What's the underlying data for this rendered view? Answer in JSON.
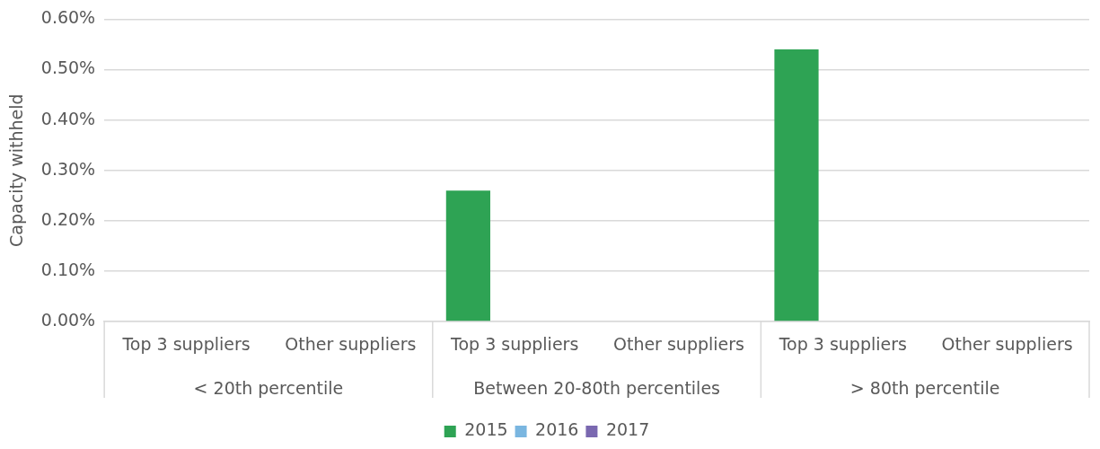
{
  "chart_data": {
    "type": "bar",
    "ylabel": "Capacity withheld",
    "categories": [
      "Top 3 suppliers",
      "Other suppliers",
      "Top 3 suppliers",
      "Other suppliers",
      "Top 3 suppliers",
      "Other suppliers"
    ],
    "annotations": [
      "< 20th percentile",
      "Between 20-80th percentiles",
      "> 80th percentile"
    ],
    "series": [
      {
        "name": "2015",
        "color": "#2ea354",
        "values": [
          0,
          0,
          0.26,
          0,
          0.54,
          0
        ]
      },
      {
        "name": "2016",
        "color": "#7ab6e0",
        "values": [
          0,
          0,
          0,
          0,
          0,
          0
        ]
      },
      {
        "name": "2017",
        "color": "#7a68b0",
        "values": [
          0,
          0,
          0,
          0,
          0,
          0
        ]
      }
    ],
    "ylim": [
      0,
      0.6
    ],
    "yticks": [
      {
        "value": 0,
        "label": "0.00%"
      },
      {
        "value": 0.1,
        "label": "0.10%"
      },
      {
        "value": 0.2,
        "label": "0.20%"
      },
      {
        "value": 0.3,
        "label": "0.30%"
      },
      {
        "value": 0.4,
        "label": "0.40%"
      },
      {
        "value": 0.5,
        "label": "0.50%"
      },
      {
        "value": 0.6,
        "label": "0.60%"
      }
    ],
    "grid": "y",
    "legend": "bottom"
  }
}
